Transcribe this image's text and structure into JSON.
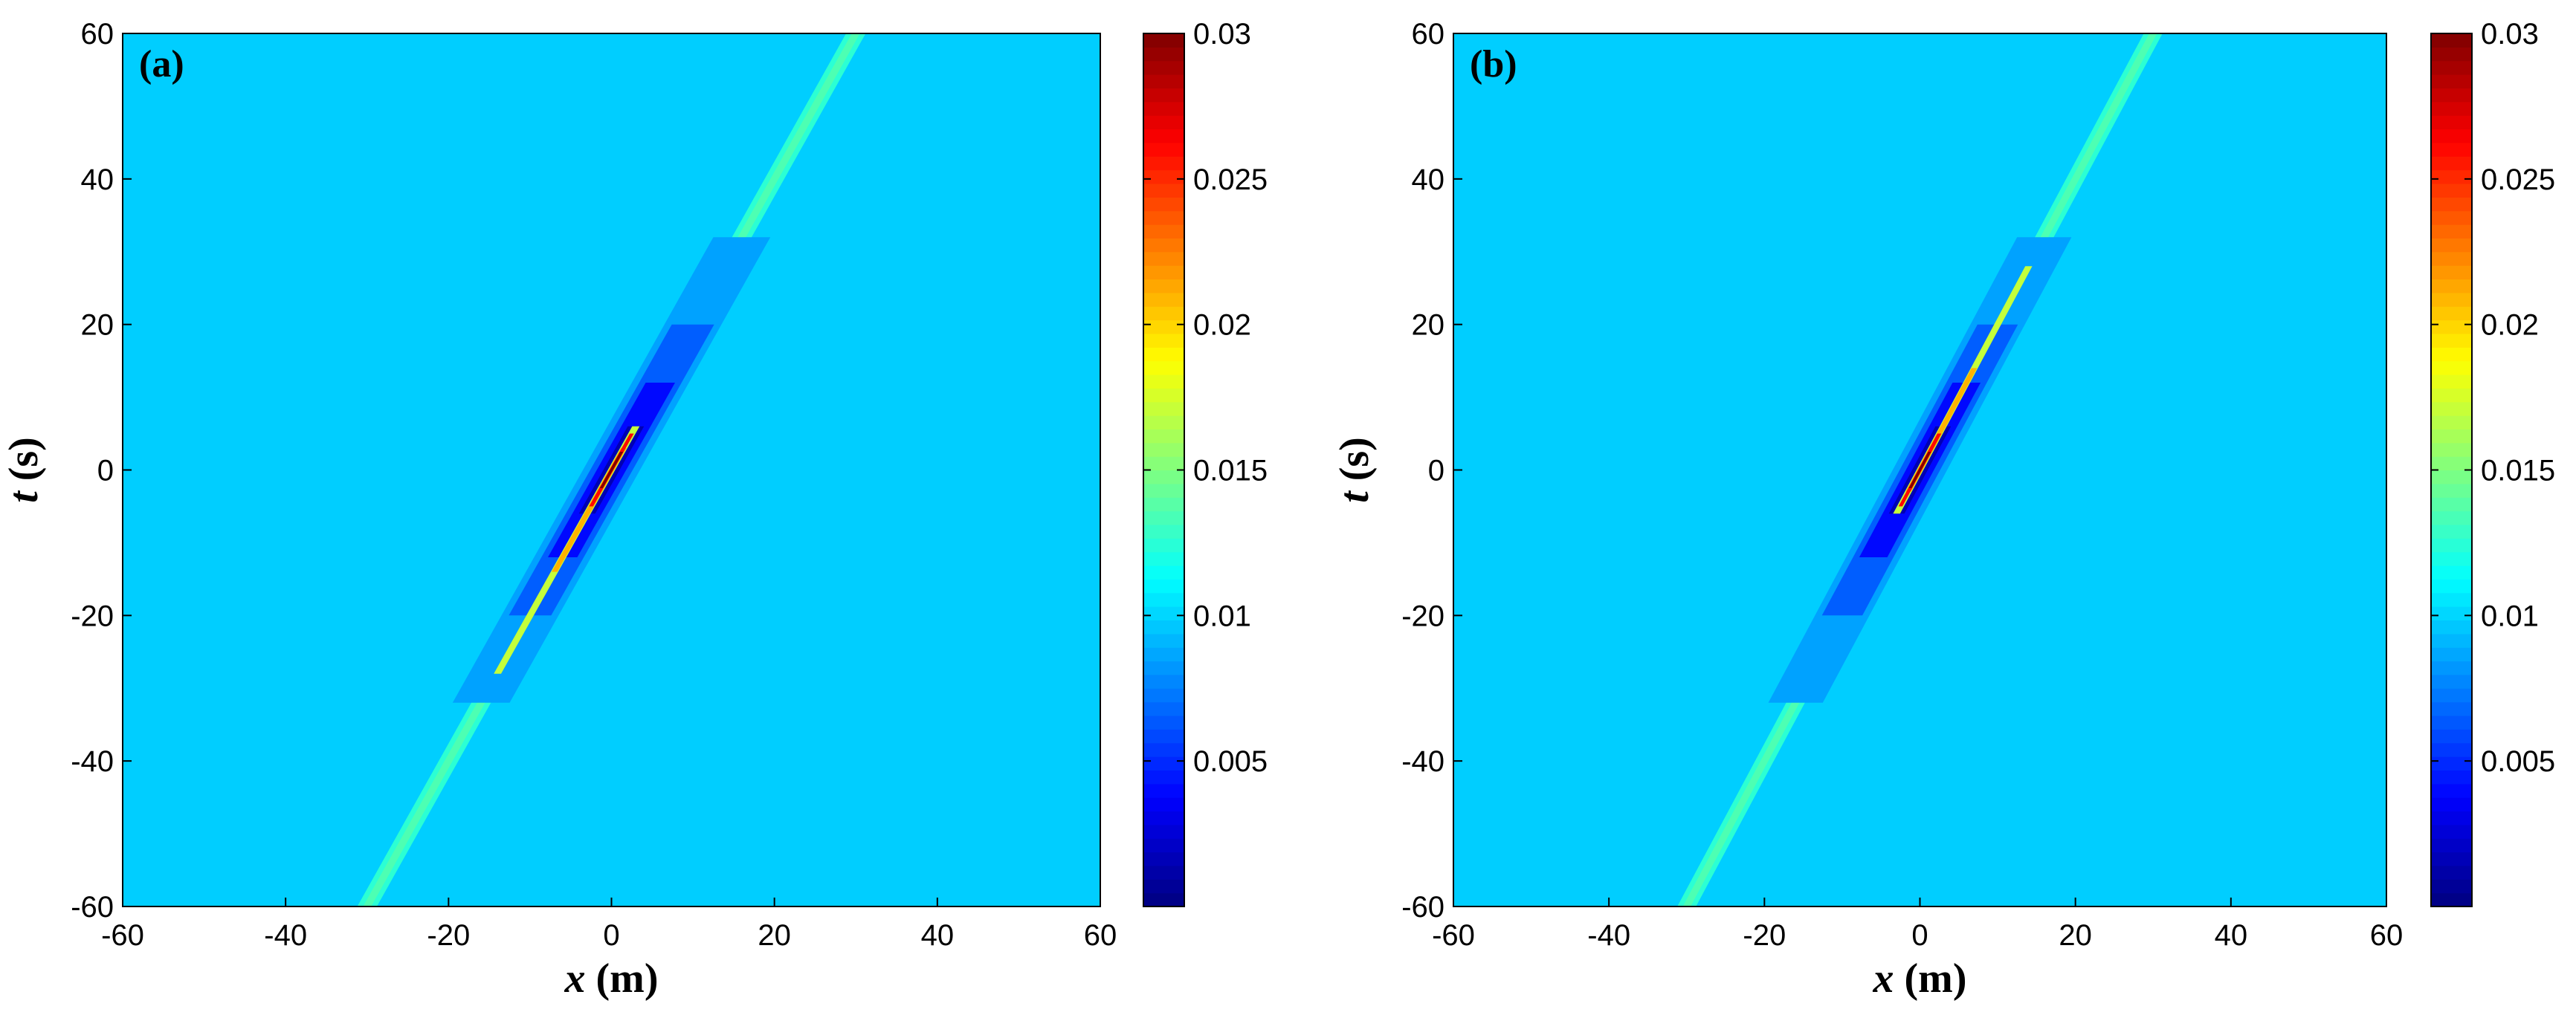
{
  "chart_data": [
    {
      "type": "heatmap",
      "panel_label": "(a)",
      "xlabel_var": "x",
      "xlabel_unit": "(m)",
      "ylabel_var": "t",
      "ylabel_unit": "(s)",
      "xlim": [
        -60,
        60
      ],
      "ylim": [
        -60,
        60
      ],
      "x_ticks": [
        -60,
        -40,
        -20,
        0,
        20,
        40,
        60
      ],
      "y_ticks": [
        -60,
        -40,
        -20,
        0,
        20,
        40,
        60
      ],
      "colormap": "jet",
      "clim": [
        0,
        0.03
      ],
      "colorbar_ticks": [
        "0.005",
        "0.01",
        "0.015",
        "0.02",
        "0.025",
        "0.03"
      ],
      "background_value": 0.0098,
      "ridge": {
        "slope_x_per_t": 0.5,
        "x_at_t0": 0,
        "direction": "bright-trailing",
        "peak_value": 0.03,
        "trough_value": 0.0005
      }
    },
    {
      "type": "heatmap",
      "panel_label": "(b)",
      "xlabel_var": "x",
      "xlabel_unit": "(m)",
      "ylabel_var": "t",
      "ylabel_unit": "(s)",
      "xlim": [
        -60,
        60
      ],
      "ylim": [
        -60,
        60
      ],
      "x_ticks": [
        -60,
        -40,
        -20,
        0,
        20,
        40,
        60
      ],
      "y_ticks": [
        -60,
        -40,
        -20,
        0,
        20,
        40,
        60
      ],
      "colormap": "jet",
      "clim": [
        0,
        0.03
      ],
      "colorbar_ticks": [
        "0.005",
        "0.01",
        "0.015",
        "0.02",
        "0.025",
        "0.03"
      ],
      "background_value": 0.0098,
      "ridge": {
        "slope_x_per_t": 0.5,
        "x_at_t0": 0,
        "direction": "bright-leading",
        "peak_value": 0.03,
        "trough_value": 0.0005
      }
    }
  ]
}
